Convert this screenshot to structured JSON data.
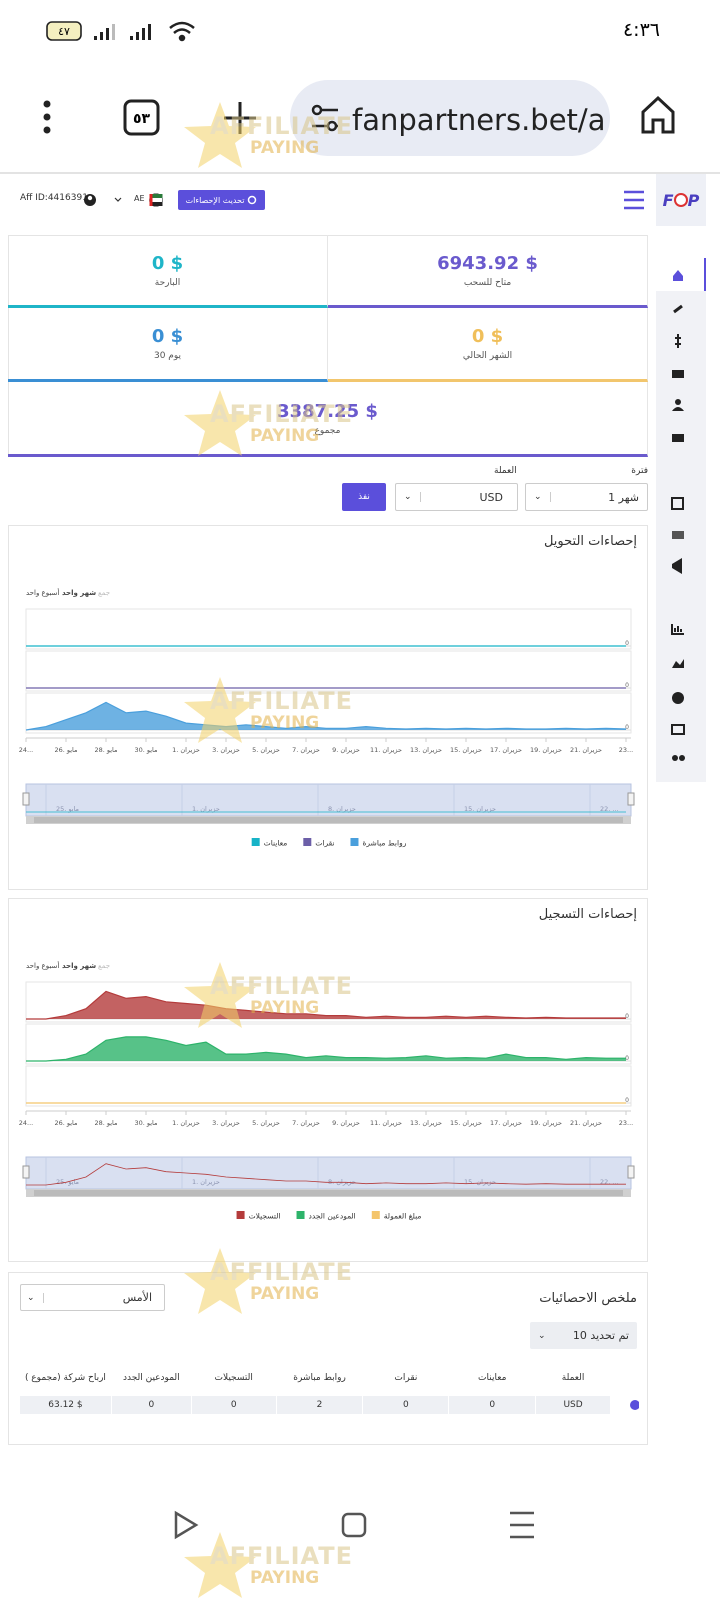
{
  "status_bar": {
    "time": "٤:٣٦",
    "battery": "٤٧"
  },
  "browser": {
    "url": "fanpartners.bet/a",
    "tab_count": "٥٣"
  },
  "watermark": {
    "line1": "AFFILIATE",
    "line2": "PAYING"
  },
  "header": {
    "logo": [
      "F",
      "P"
    ],
    "aff_id": "Aff ID:4416391",
    "country": "AE",
    "refresh_button": "تحديث الإحصاءات"
  },
  "cards": [
    {
      "value": "6943.92 $",
      "label": "متاح للسحب"
    },
    {
      "value": "0 $",
      "label": "البارحة"
    },
    {
      "value": "0 $",
      "label": "الشهر الحالي"
    },
    {
      "value": "0 $",
      "label": "30 يوم"
    },
    {
      "value": "3387.25 $",
      "label": "مجموع"
    }
  ],
  "filters": {
    "period_label": "فترة",
    "period": "شهر 1",
    "currency_label": "العملة",
    "currency": "USD",
    "submit": "نفذ"
  },
  "charts": [
    {
      "type": "area",
      "title": "إحصاءات التحويل",
      "zoom": [
        "أسبوع واحد",
        "شهر واحد",
        "جمع"
      ],
      "categories": [
        "24...",
        null,
        "26. مايو",
        null,
        "28. مايو",
        null,
        "30. مايو",
        null,
        "1. حزيران",
        null,
        "3. حزيران",
        null,
        "5. حزيران",
        null,
        "7. حزيران",
        null,
        "9. حزيران",
        null,
        "11. حزيران",
        null,
        "13. حزيران",
        null,
        "15. حزيران",
        null,
        "17. حزيران",
        null,
        "19. حزيران",
        null,
        "21. حزيران",
        null,
        "23..."
      ],
      "navigator_labels": [
        "25. مايو",
        "1. حزيران",
        "8. حزيران",
        "15. حزيران",
        "22. ..."
      ],
      "series": [
        {
          "name": "معاينات",
          "color": "#17b3c7",
          "ylim": [
            0,
            1
          ],
          "yticks": [
            0
          ],
          "values": [
            0,
            0,
            0,
            0,
            0,
            0,
            0,
            0,
            0,
            0,
            0,
            0,
            0,
            0,
            0,
            0,
            0,
            0,
            0,
            0,
            0,
            0,
            0,
            0,
            0,
            0,
            0,
            0,
            0,
            0,
            0
          ]
        },
        {
          "name": "نقرات",
          "color": "#6c5fa8",
          "ylim": [
            0,
            1
          ],
          "yticks": [
            0
          ],
          "values": [
            0,
            0,
            0,
            0,
            0,
            0,
            0,
            0,
            0,
            0,
            0,
            0,
            0,
            0,
            0,
            0,
            0,
            0,
            0,
            0,
            0,
            0,
            0,
            0,
            0,
            0,
            0,
            0,
            0,
            0,
            0
          ]
        },
        {
          "name": "روابط مباشرة",
          "color": "#4a9fdc",
          "ylim": [
            0,
            9
          ],
          "yticks": [
            0
          ],
          "values": [
            0,
            1,
            3,
            5,
            8,
            5,
            5.5,
            4,
            2,
            1.5,
            1,
            1.5,
            1,
            0.5,
            1,
            0.5,
            0.5,
            1,
            0.5,
            0.3,
            0.5,
            0.3,
            0.5,
            0.3,
            0.5,
            0.3,
            0.3,
            0.5,
            0.3,
            0.5,
            0.3
          ]
        }
      ]
    },
    {
      "type": "area",
      "title": "إحصاءات التسجيل",
      "zoom": [
        "أسبوع واحد",
        "شهر واحد",
        "جمع"
      ],
      "categories": [
        "24...",
        null,
        "26. مايو",
        null,
        "28. مايو",
        null,
        "30. مايو",
        null,
        "1. حزيران",
        null,
        "3. حزيران",
        null,
        "5. حزيران",
        null,
        "7. حزيران",
        null,
        "9. حزيران",
        null,
        "11. حزيران",
        null,
        "13. حزيران",
        null,
        "15. حزيران",
        null,
        "17. حزيران",
        null,
        "19. حزيران",
        null,
        "21. حزيران",
        null,
        "23..."
      ],
      "navigator_labels": [
        "25. مايو",
        "1. حزيران",
        "8. حزيران",
        "15. حزيران",
        "22. ..."
      ],
      "series": [
        {
          "name": "التسجيلات",
          "color": "#b43b3b",
          "ylim": [
            0,
            9
          ],
          "yticks": [
            0
          ],
          "values": [
            0,
            0,
            1,
            3,
            8,
            6,
            6.5,
            5,
            4.5,
            4,
            3,
            2.5,
            2,
            1.5,
            1.5,
            1,
            1,
            0.5,
            0.8,
            0.5,
            0.5,
            0.8,
            0.5,
            0.8,
            0.5,
            0.3,
            0.5,
            0.3,
            0.3,
            0.3,
            0.3
          ]
        },
        {
          "name": "المودعين الجدد",
          "color": "#2db36a",
          "ylim": [
            0,
            9
          ],
          "yticks": [
            0
          ],
          "values": [
            0,
            0,
            0.5,
            2,
            6,
            7,
            7,
            6,
            4.5,
            5.5,
            2,
            2,
            2.5,
            2,
            1,
            1.5,
            1,
            1,
            0.8,
            1,
            1.5,
            0.8,
            1,
            0.8,
            2,
            1,
            1,
            0.5,
            1,
            0.8,
            0.8
          ]
        },
        {
          "name": "مبلغ العمولة",
          "color": "#f4c56b",
          "ylim": [
            0,
            1
          ],
          "yticks": [
            0
          ],
          "values": [
            0,
            0,
            0,
            0,
            0,
            0,
            0,
            0,
            0,
            0,
            0,
            0,
            0,
            0,
            0,
            0,
            0,
            0,
            0,
            0,
            0,
            0,
            0,
            0,
            0,
            0,
            0,
            0,
            0,
            0,
            0
          ]
        }
      ]
    }
  ],
  "summary": {
    "title": "ملخص الاحصائيات",
    "range": "الأمس",
    "page_size": "تم تحديد 10",
    "columns": [
      "العملة",
      "معاينات",
      "نقرات",
      "روابط مباشرة",
      "التسجيلات",
      "المودعين الجدد",
      "ارباح شركة (مجموع )"
    ],
    "rows": [
      [
        "USD",
        0,
        0,
        2,
        0,
        0,
        "$ 63.12"
      ]
    ]
  }
}
